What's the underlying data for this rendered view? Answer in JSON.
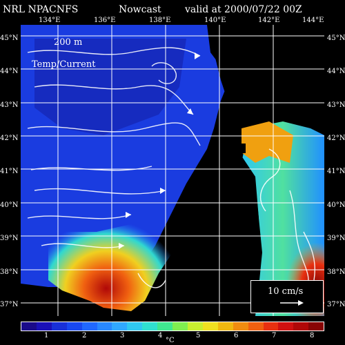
{
  "header": {
    "product": "NRL NPACNFS",
    "mode": "Nowcast",
    "valid": "valid at 2000/07/22 00Z"
  },
  "overlay": {
    "depth": "200 m",
    "field": "Temp/Current"
  },
  "scale_vector": {
    "label": "10 cm/s"
  },
  "lon_labels": [
    "134°E",
    "136°E",
    "138°E",
    "140°E",
    "142°E",
    "144°E"
  ],
  "lat_labels": [
    "45°N",
    "44°N",
    "43°N",
    "42°N",
    "41°N",
    "40°N",
    "39°N",
    "38°N",
    "37°N"
  ],
  "colorbar": {
    "unit": "°C",
    "ticks": [
      "1",
      "2",
      "3",
      "4",
      "5",
      "6",
      "7",
      "8"
    ],
    "colors": [
      "#1a0a8a",
      "#1a10b8",
      "#1830d8",
      "#1848f0",
      "#2068ff",
      "#2888ff",
      "#30a8ff",
      "#30c8f0",
      "#30e0d0",
      "#40e890",
      "#80ee50",
      "#c8ee30",
      "#f0e020",
      "#f0b810",
      "#f08c10",
      "#f06010",
      "#e83010",
      "#d01010",
      "#b00808",
      "#880404"
    ]
  },
  "colors": {
    "land": "#000000",
    "graticule": "#ffffff",
    "cold_water": "#1a3ce0",
    "warm_water": "#e84010"
  }
}
